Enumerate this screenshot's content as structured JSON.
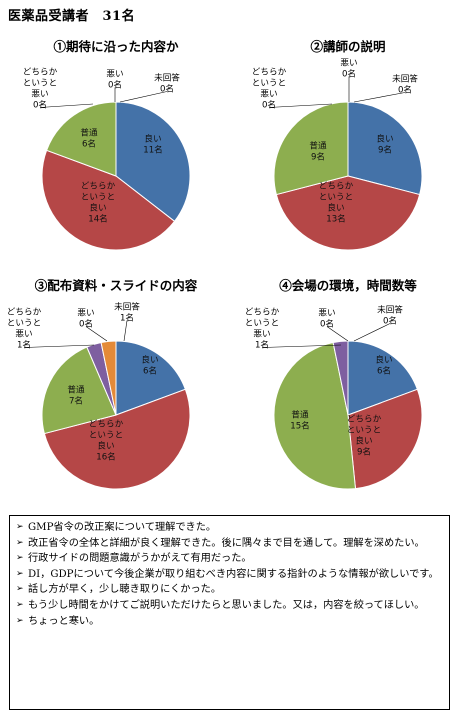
{
  "page": {
    "title": "医薬品受講者　31名"
  },
  "chart_data": [
    {
      "type": "pie",
      "title": "①期待に沿った内容か",
      "slices": [
        {
          "name": "良い",
          "value": 11,
          "color": "#4472A8",
          "label_lines": [
            "良い",
            "11名"
          ]
        },
        {
          "name": "どちらかというと良い",
          "value": 14,
          "color": "#B54747",
          "label_lines": [
            "どちらか",
            "というと",
            "良い",
            "14名"
          ]
        },
        {
          "name": "普通",
          "value": 6,
          "color": "#8DAE4F",
          "label_lines": [
            "普通",
            "6名"
          ]
        },
        {
          "name": "どちらかというと悪い",
          "value": 0,
          "color": "#7E5FA0",
          "label_lines": [
            "どちらか",
            "というと",
            "悪い",
            "0名"
          ]
        },
        {
          "name": "悪い",
          "value": 0,
          "color": "#46A3BE",
          "label_lines": [
            "悪い",
            "0名"
          ]
        },
        {
          "name": "未回答",
          "value": 0,
          "color": "#E48A38",
          "label_lines": [
            "未回答",
            "0名"
          ]
        }
      ]
    },
    {
      "type": "pie",
      "title": "②講師の説明",
      "slices": [
        {
          "name": "良い",
          "value": 9,
          "color": "#4472A8",
          "label_lines": [
            "良い",
            "9名"
          ]
        },
        {
          "name": "どちらかというと良い",
          "value": 13,
          "color": "#B54747",
          "label_lines": [
            "どちらか",
            "というと",
            "良い",
            "13名"
          ]
        },
        {
          "name": "普通",
          "value": 9,
          "color": "#8DAE4F",
          "label_lines": [
            "普通",
            "9名"
          ]
        },
        {
          "name": "どちらかというと悪い",
          "value": 0,
          "color": "#7E5FA0",
          "label_lines": [
            "どちらか",
            "というと",
            "悪い",
            "0名"
          ]
        },
        {
          "name": "悪い",
          "value": 0,
          "color": "#46A3BE",
          "label_lines": [
            "悪い",
            "0名"
          ]
        },
        {
          "name": "未回答",
          "value": 0,
          "color": "#E48A38",
          "label_lines": [
            "未回答",
            "0名"
          ]
        }
      ]
    },
    {
      "type": "pie",
      "title": "③配布資料・スライドの内容",
      "slices": [
        {
          "name": "良い",
          "value": 6,
          "color": "#4472A8",
          "label_lines": [
            "良い",
            "6名"
          ]
        },
        {
          "name": "どちらかというと良い",
          "value": 16,
          "color": "#B54747",
          "label_lines": [
            "どちらか",
            "というと",
            "良い",
            "16名"
          ]
        },
        {
          "name": "普通",
          "value": 7,
          "color": "#8DAE4F",
          "label_lines": [
            "普通",
            "7名"
          ]
        },
        {
          "name": "どちらかというと悪い",
          "value": 1,
          "color": "#7E5FA0",
          "label_lines": [
            "どちらか",
            "というと",
            "悪い",
            "1名"
          ]
        },
        {
          "name": "悪い",
          "value": 0,
          "color": "#46A3BE",
          "label_lines": [
            "悪い",
            "0名"
          ]
        },
        {
          "name": "未回答",
          "value": 1,
          "color": "#E48A38",
          "label_lines": [
            "未回答",
            "1名"
          ]
        }
      ]
    },
    {
      "type": "pie",
      "title": "④会場の環境，時間数等",
      "slices": [
        {
          "name": "良い",
          "value": 6,
          "color": "#4472A8",
          "label_lines": [
            "良い",
            "6名"
          ]
        },
        {
          "name": "どちらかというと良い",
          "value": 9,
          "color": "#B54747",
          "label_lines": [
            "どちらか",
            "というと",
            "良い",
            "9名"
          ]
        },
        {
          "name": "普通",
          "value": 15,
          "color": "#8DAE4F",
          "label_lines": [
            "普通",
            "15名"
          ]
        },
        {
          "name": "どちらかというと悪い",
          "value": 1,
          "color": "#7E5FA0",
          "label_lines": [
            "どちらか",
            "というと",
            "悪い",
            "1名"
          ]
        },
        {
          "name": "悪い",
          "value": 0,
          "color": "#46A3BE",
          "label_lines": [
            "悪い",
            "0名"
          ]
        },
        {
          "name": "未回答",
          "value": 0,
          "color": "#E48A38",
          "label_lines": [
            "未回答",
            "0名"
          ]
        }
      ]
    }
  ],
  "comments": {
    "bullet_icon": "arrow-right-icon",
    "items": [
      "GMP省令の改正案について理解できた。",
      "改正省令の全体と詳細が良く理解できた。後に隅々まで目を通して。理解を深めたい。",
      "行政サイドの問題意識がうかがえて有用だった。",
      "DI，GDPについて今後企業が取り組むべき内容に関する指針のような情報が欲しいです。",
      "話し方が早く，少し聴き取りにくかった。",
      "もう少し時間をかけてご説明いただけたらと思いました。又は，内容を絞ってほしい。",
      "ちょっと寒い。"
    ]
  }
}
